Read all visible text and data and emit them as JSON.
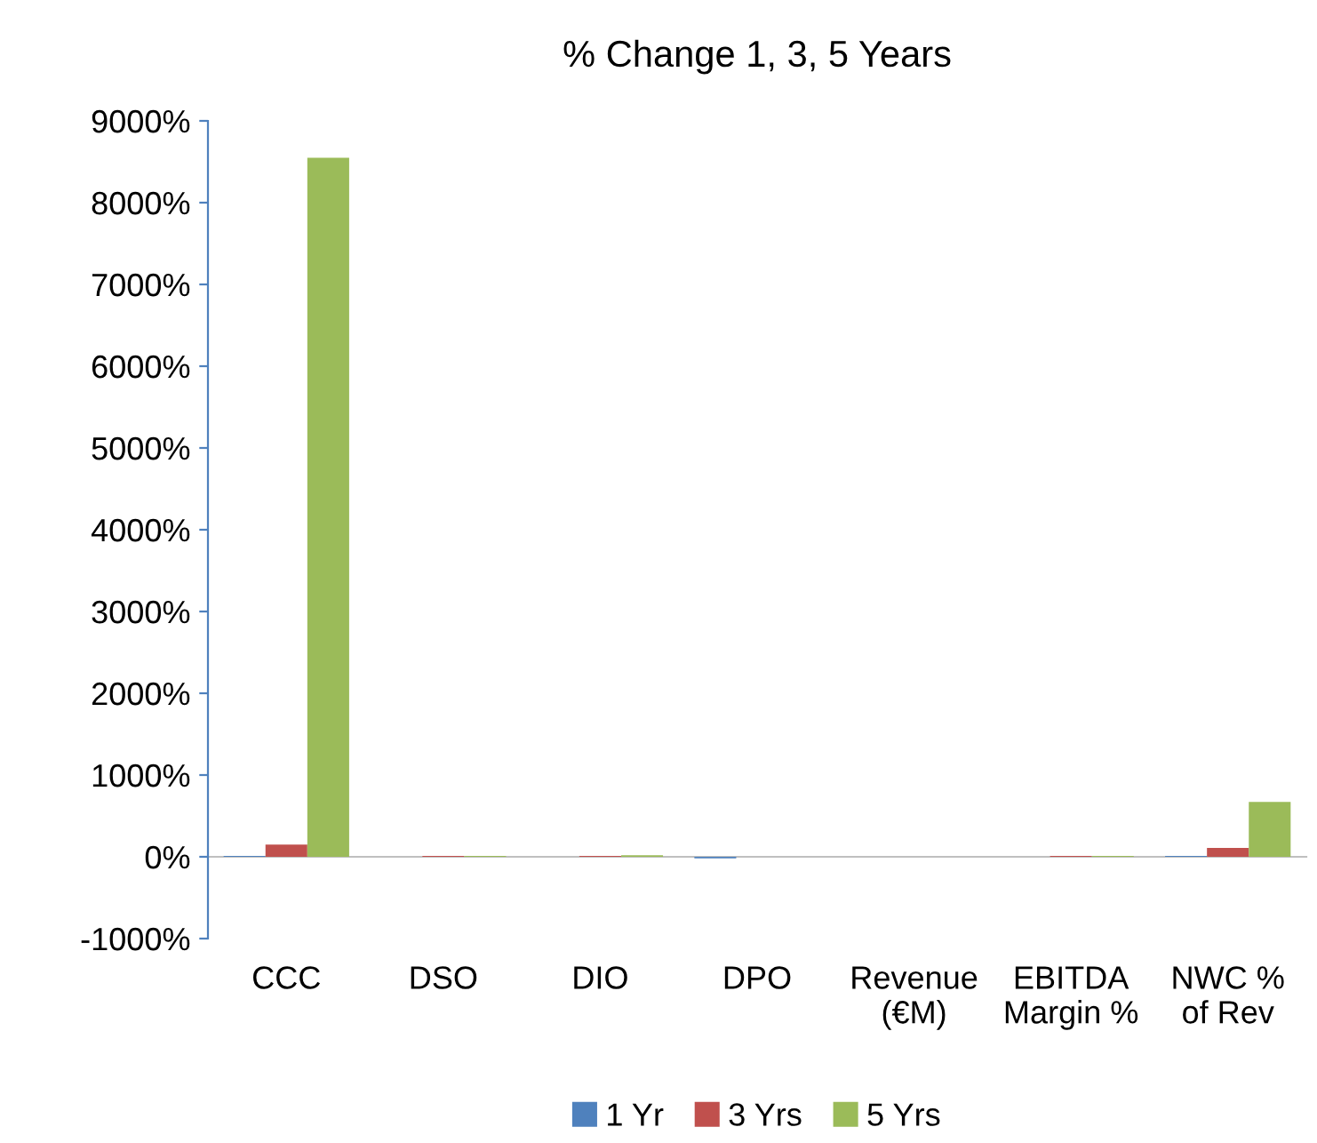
{
  "chart_data": {
    "type": "bar",
    "title": "% Change 1, 3, 5 Years",
    "categories": [
      "CCC",
      "DSO",
      "DIO",
      "DPO",
      "Revenue\n(€M)",
      "EBITDA\nMargin %",
      "NWC %\nof Rev"
    ],
    "series": [
      {
        "name": "1 Yr",
        "color": "#4f81bd",
        "values": [
          10,
          0,
          0,
          -20,
          0,
          0,
          10
        ]
      },
      {
        "name": "3 Yrs",
        "color": "#c0504d",
        "values": [
          150,
          10,
          10,
          0,
          0,
          10,
          110
        ]
      },
      {
        "name": "5 Yrs",
        "color": "#9bbb59",
        "values": [
          8550,
          10,
          20,
          0,
          0,
          10,
          670
        ]
      }
    ],
    "ylim": [
      -1000,
      9000
    ],
    "yticks": [
      {
        "value": -1000,
        "label": "-1000%"
      },
      {
        "value": 0,
        "label": "0%"
      },
      {
        "value": 1000,
        "label": "1000%"
      },
      {
        "value": 2000,
        "label": "2000%"
      },
      {
        "value": 3000,
        "label": "3000%"
      },
      {
        "value": 4000,
        "label": "4000%"
      },
      {
        "value": 5000,
        "label": "5000%"
      },
      {
        "value": 6000,
        "label": "6000%"
      },
      {
        "value": 7000,
        "label": "7000%"
      },
      {
        "value": 8000,
        "label": "8000%"
      },
      {
        "value": 9000,
        "label": "9000%"
      }
    ],
    "legend": "bottom"
  }
}
